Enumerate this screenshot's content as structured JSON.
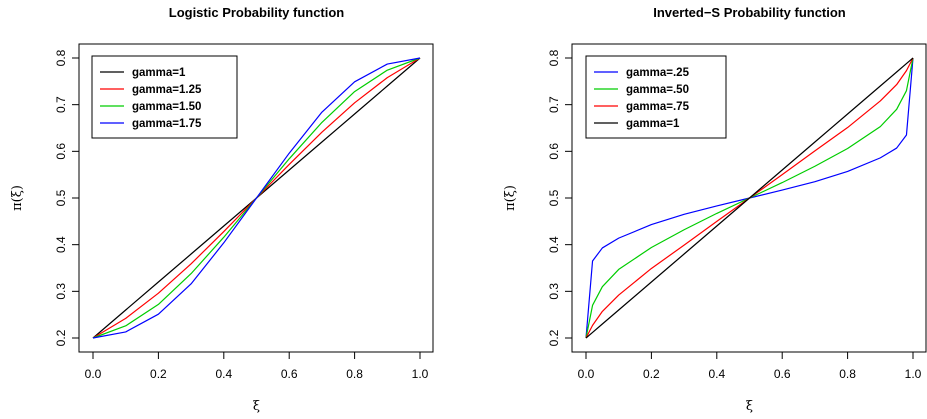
{
  "chart_data": [
    {
      "type": "line",
      "title": "Logistic Probability function",
      "xlabel": "ξ",
      "ylabel": "π(ξ)",
      "xlim": [
        0,
        1
      ],
      "ylim": [
        0.2,
        0.8
      ],
      "xticks": [
        "0.0",
        "0.2",
        "0.4",
        "0.6",
        "0.8",
        "1.0"
      ],
      "yticks": [
        "0.2",
        "0.3",
        "0.4",
        "0.5",
        "0.6",
        "0.7",
        "0.8"
      ],
      "legend_position": "top-left",
      "x": [
        0,
        0.1,
        0.2,
        0.3,
        0.4,
        0.5,
        0.6,
        0.7,
        0.8,
        0.9,
        1.0
      ],
      "series": [
        {
          "name": "gamma=1",
          "color": "#000000",
          "values": [
            0.2,
            0.26,
            0.32,
            0.38,
            0.44,
            0.5,
            0.56,
            0.62,
            0.68,
            0.74,
            0.8
          ]
        },
        {
          "name": "gamma=1.25",
          "color": "#ff0000",
          "values": [
            0.2,
            0.242,
            0.296,
            0.359,
            0.428,
            0.5,
            0.572,
            0.641,
            0.704,
            0.758,
            0.8
          ]
        },
        {
          "name": "gamma=1.50",
          "color": "#00cd00",
          "values": [
            0.2,
            0.226,
            0.272,
            0.338,
            0.416,
            0.5,
            0.584,
            0.662,
            0.728,
            0.774,
            0.8
          ]
        },
        {
          "name": "gamma=1.75",
          "color": "#0000ff",
          "values": [
            0.2,
            0.213,
            0.251,
            0.316,
            0.404,
            0.5,
            0.596,
            0.684,
            0.749,
            0.787,
            0.8
          ]
        }
      ]
    },
    {
      "type": "line",
      "title": "Inverted−S Probability function",
      "xlabel": "ξ",
      "ylabel": "π(ξ)",
      "xlim": [
        0,
        1
      ],
      "ylim": [
        0.2,
        0.8
      ],
      "xticks": [
        "0.0",
        "0.2",
        "0.4",
        "0.6",
        "0.8",
        "1.0"
      ],
      "yticks": [
        "0.2",
        "0.3",
        "0.4",
        "0.5",
        "0.6",
        "0.7",
        "0.8"
      ],
      "legend_position": "top-left",
      "x": [
        0,
        0.02,
        0.05,
        0.1,
        0.2,
        0.3,
        0.4,
        0.5,
        0.6,
        0.7,
        0.8,
        0.9,
        0.95,
        0.98,
        1.0
      ],
      "series": [
        {
          "name": "gamma=.25",
          "color": "#0000ff",
          "values": [
            0.2,
            0.365,
            0.393,
            0.414,
            0.443,
            0.465,
            0.483,
            0.5,
            0.517,
            0.535,
            0.557,
            0.586,
            0.607,
            0.635,
            0.8
          ]
        },
        {
          "name": "gamma=.50",
          "color": "#00cd00",
          "values": [
            0.2,
            0.27,
            0.31,
            0.347,
            0.394,
            0.432,
            0.467,
            0.5,
            0.533,
            0.568,
            0.606,
            0.653,
            0.69,
            0.73,
            0.8
          ]
        },
        {
          "name": "gamma=.75",
          "color": "#ff0000",
          "values": [
            0.2,
            0.227,
            0.257,
            0.292,
            0.349,
            0.399,
            0.45,
            0.5,
            0.55,
            0.601,
            0.651,
            0.708,
            0.743,
            0.773,
            0.8
          ]
        },
        {
          "name": "gamma=1",
          "color": "#000000",
          "values": [
            0.2,
            0.212,
            0.23,
            0.26,
            0.32,
            0.38,
            0.44,
            0.5,
            0.56,
            0.62,
            0.68,
            0.74,
            0.77,
            0.788,
            0.8
          ]
        }
      ]
    }
  ]
}
